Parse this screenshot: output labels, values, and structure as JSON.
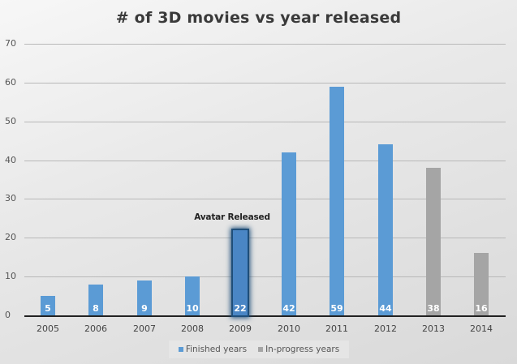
{
  "chart_data": {
    "type": "bar",
    "title": "# of 3D movies vs year released",
    "xlabel": "",
    "ylabel": "",
    "ylim": [
      0,
      70
    ],
    "yticks": [
      0,
      10,
      20,
      30,
      40,
      50,
      60,
      70
    ],
    "grid": true,
    "legend_position": "bottom",
    "categories": [
      "2005",
      "2006",
      "2007",
      "2008",
      "2009",
      "2010",
      "2011",
      "2012",
      "2013",
      "2014"
    ],
    "values": [
      5,
      8,
      9,
      10,
      22,
      42,
      59,
      44,
      38,
      16
    ],
    "series": [
      {
        "name": "Finished years",
        "color": "#5b9bd5",
        "values": [
          5,
          8,
          9,
          10,
          22,
          42,
          59,
          44,
          null,
          null
        ]
      },
      {
        "name": "In-progress years",
        "color": "#a5a5a5",
        "values": [
          null,
          null,
          null,
          null,
          null,
          null,
          null,
          null,
          38,
          16
        ]
      }
    ],
    "annotations": [
      {
        "category": "2009",
        "text": "Avatar Released",
        "highlight": true
      }
    ]
  },
  "colors": {
    "finished": "#5b9bd5",
    "in_progress": "#a5a5a5",
    "highlight_bar": "#4a86c5",
    "highlight_border": "#1f4e79"
  },
  "legend": {
    "items": [
      {
        "label": "Finished years",
        "color": "#5b9bd5"
      },
      {
        "label": "In-progress years",
        "color": "#a5a5a5"
      }
    ]
  }
}
